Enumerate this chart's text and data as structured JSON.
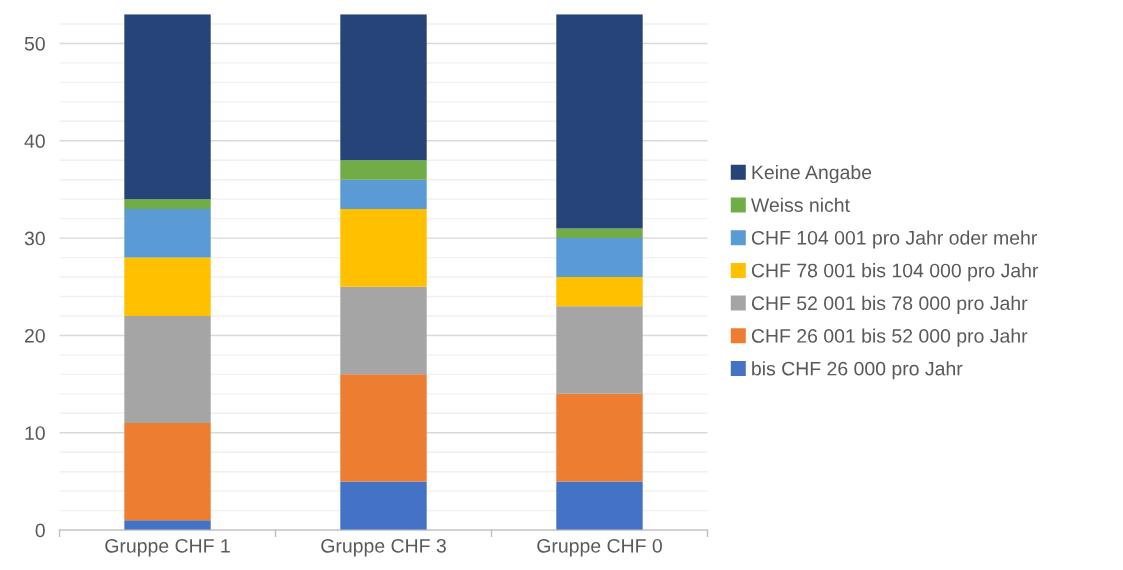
{
  "chart_data": {
    "type": "bar",
    "stacked": true,
    "categories": [
      "Gruppe CHF 1",
      "Gruppe CHF 3",
      "Gruppe CHF 0"
    ],
    "series": [
      {
        "name": "bis CHF 26 000 pro Jahr",
        "color": "#4472c4",
        "values": [
          1,
          5,
          5
        ]
      },
      {
        "name": "CHF 26 001 bis 52 000 pro Jahr",
        "color": "#ed7d31",
        "values": [
          10,
          11,
          9
        ]
      },
      {
        "name": "CHF 52 001 bis 78 000 pro Jahr",
        "color": "#a5a5a5",
        "values": [
          11,
          9,
          9
        ]
      },
      {
        "name": "CHF 78 001 bis 104 000 pro Jahr",
        "color": "#ffc000",
        "values": [
          6,
          8,
          3
        ]
      },
      {
        "name": "CHF 104 001 pro Jahr oder mehr",
        "color": "#5b9bd5",
        "values": [
          5,
          3,
          4
        ]
      },
      {
        "name": "Weiss nicht",
        "color": "#70ad47",
        "values": [
          1,
          2,
          1
        ]
      },
      {
        "name": "Keine Angabe",
        "color": "#264478",
        "values": [
          19,
          15,
          22
        ]
      }
    ],
    "ylim": [
      0,
      53
    ],
    "yticks": [
      0,
      {
        "value": 2,
        "label": null
      },
      {
        "value": 4,
        "label": null
      },
      {
        "value": 6,
        "label": null
      },
      {
        "value": 8,
        "label": null
      },
      10,
      {
        "value": 12,
        "label": null
      },
      {
        "value": 14,
        "label": null
      },
      {
        "value": 16,
        "label": null
      },
      {
        "value": 18,
        "label": null
      },
      20,
      {
        "value": 22,
        "label": null
      },
      {
        "value": 24,
        "label": null
      },
      {
        "value": 26,
        "label": null
      },
      {
        "value": 28,
        "label": null
      },
      30,
      {
        "value": 32,
        "label": null
      },
      {
        "value": 34,
        "label": null
      },
      {
        "value": 36,
        "label": null
      },
      {
        "value": 38,
        "label": null
      },
      40,
      {
        "value": 42,
        "label": null
      },
      {
        "value": 44,
        "label": null
      },
      {
        "value": 46,
        "label": null
      },
      {
        "value": 48,
        "label": null
      },
      50,
      {
        "value": 52,
        "label": null
      }
    ],
    "grid": "y",
    "legend": "right"
  }
}
